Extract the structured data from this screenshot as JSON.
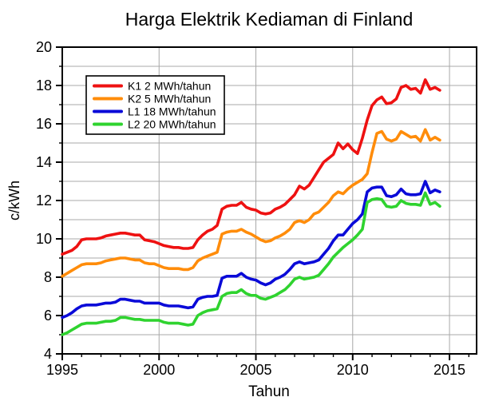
{
  "title": "Harga Elektrik Kediaman di Finland",
  "chart_data": {
    "type": "line",
    "title": "Harga Elektrik Kediaman di Finland",
    "xlabel": "Tahun",
    "ylabel": "c/kWh",
    "xlim": [
      1995,
      2016.4
    ],
    "ylim": [
      4,
      20
    ],
    "x_major_ticks": [
      1995,
      2000,
      2005,
      2010,
      2015
    ],
    "x_minor_interval": 1,
    "y_major_ticks": [
      4,
      6,
      8,
      10,
      12,
      14,
      16,
      18,
      20
    ],
    "y_minor_interval": 1,
    "grid": {
      "horizontal_interval": 1,
      "vertical_interval": 5,
      "color": "#a8a8a8"
    },
    "legend_position": "upper-left",
    "x_start": 1995.0,
    "x_step": 0.25,
    "series": [
      {
        "name": "K1 2 MWh/tahun",
        "color": "#ee1111",
        "values": [
          9.2,
          9.3,
          9.4,
          9.6,
          9.95,
          10.0,
          10.0,
          10.0,
          10.05,
          10.15,
          10.2,
          10.25,
          10.3,
          10.3,
          10.25,
          10.2,
          10.2,
          9.95,
          9.9,
          9.85,
          9.75,
          9.65,
          9.6,
          9.55,
          9.55,
          9.5,
          9.5,
          9.55,
          9.95,
          10.2,
          10.4,
          10.5,
          10.7,
          11.55,
          11.7,
          11.75,
          11.75,
          11.9,
          11.65,
          11.55,
          11.5,
          11.35,
          11.3,
          11.35,
          11.55,
          11.65,
          11.8,
          12.05,
          12.3,
          12.75,
          12.6,
          12.8,
          13.2,
          13.6,
          14.0,
          14.2,
          14.4,
          15.0,
          14.7,
          14.95,
          14.65,
          14.45,
          15.25,
          16.2,
          16.95,
          17.25,
          17.4,
          17.05,
          17.1,
          17.3,
          17.9,
          18.0,
          17.8,
          17.85,
          17.6,
          18.3,
          17.8,
          17.9,
          17.75
        ]
      },
      {
        "name": "K2 5 MWh/tahun",
        "color": "#ff8c0a",
        "values": [
          8.05,
          8.2,
          8.35,
          8.5,
          8.65,
          8.7,
          8.7,
          8.7,
          8.75,
          8.85,
          8.9,
          8.95,
          9.0,
          9.0,
          8.95,
          8.9,
          8.9,
          8.75,
          8.7,
          8.7,
          8.6,
          8.5,
          8.45,
          8.45,
          8.45,
          8.4,
          8.4,
          8.5,
          8.85,
          9.0,
          9.1,
          9.2,
          9.3,
          10.25,
          10.35,
          10.4,
          10.4,
          10.5,
          10.35,
          10.25,
          10.1,
          9.95,
          9.85,
          9.9,
          10.05,
          10.15,
          10.3,
          10.5,
          10.85,
          10.95,
          10.85,
          11.0,
          11.3,
          11.4,
          11.65,
          11.9,
          12.25,
          12.45,
          12.35,
          12.6,
          12.8,
          12.95,
          13.1,
          13.4,
          14.5,
          15.5,
          15.6,
          15.2,
          15.1,
          15.2,
          15.6,
          15.45,
          15.3,
          15.35,
          15.1,
          15.7,
          15.15,
          15.3,
          15.15
        ]
      },
      {
        "name": "L1 18 MWh/tahun",
        "color": "#0a0ad8",
        "values": [
          5.9,
          6.0,
          6.15,
          6.35,
          6.5,
          6.55,
          6.55,
          6.55,
          6.6,
          6.65,
          6.65,
          6.7,
          6.85,
          6.85,
          6.8,
          6.75,
          6.75,
          6.65,
          6.65,
          6.65,
          6.65,
          6.55,
          6.5,
          6.5,
          6.5,
          6.45,
          6.4,
          6.45,
          6.85,
          6.95,
          7.0,
          7.0,
          7.05,
          7.95,
          8.05,
          8.05,
          8.05,
          8.2,
          8.0,
          7.9,
          7.85,
          7.7,
          7.6,
          7.7,
          7.9,
          8.0,
          8.15,
          8.4,
          8.7,
          8.8,
          8.7,
          8.75,
          8.8,
          8.9,
          9.2,
          9.5,
          9.9,
          10.2,
          10.2,
          10.5,
          10.8,
          11.0,
          11.3,
          12.45,
          12.65,
          12.7,
          12.7,
          12.25,
          12.2,
          12.3,
          12.6,
          12.35,
          12.3,
          12.3,
          12.35,
          13.0,
          12.4,
          12.55,
          12.45
        ]
      },
      {
        "name": "L2 20 MWh/tahun",
        "color": "#2fd32f",
        "values": [
          5.0,
          5.1,
          5.25,
          5.4,
          5.55,
          5.6,
          5.6,
          5.6,
          5.65,
          5.7,
          5.7,
          5.75,
          5.9,
          5.9,
          5.85,
          5.8,
          5.8,
          5.75,
          5.75,
          5.75,
          5.75,
          5.65,
          5.6,
          5.6,
          5.6,
          5.55,
          5.5,
          5.55,
          6.0,
          6.15,
          6.25,
          6.3,
          6.35,
          7.0,
          7.15,
          7.2,
          7.2,
          7.35,
          7.15,
          7.05,
          7.05,
          6.9,
          6.85,
          6.95,
          7.05,
          7.2,
          7.35,
          7.6,
          7.9,
          8.0,
          7.9,
          7.95,
          8.0,
          8.1,
          8.4,
          8.7,
          9.05,
          9.3,
          9.55,
          9.75,
          9.95,
          10.2,
          10.5,
          11.9,
          12.05,
          12.1,
          12.05,
          11.7,
          11.65,
          11.7,
          12.0,
          11.85,
          11.8,
          11.8,
          11.75,
          12.4,
          11.8,
          11.9,
          11.7
        ]
      }
    ]
  }
}
